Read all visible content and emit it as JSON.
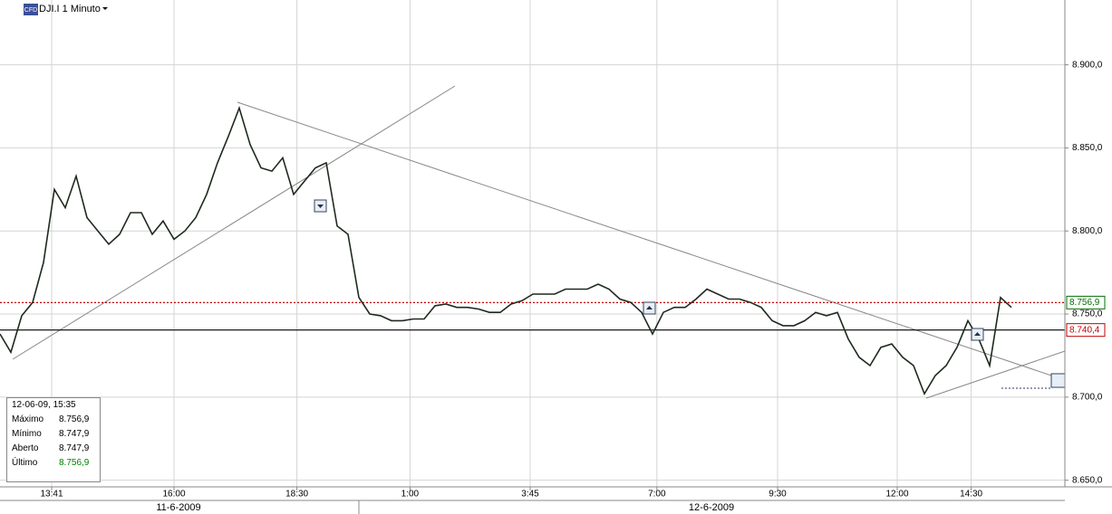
{
  "chart_data": {
    "type": "line",
    "title": "DJI.I 1 Minuto",
    "badge": "CFD",
    "x": [
      0,
      1,
      2,
      3,
      4,
      5,
      6,
      7,
      8,
      9,
      10,
      11,
      12,
      13,
      14,
      15,
      16,
      17,
      18,
      19,
      20,
      21,
      22,
      23,
      24,
      25,
      26,
      27,
      28,
      29,
      30,
      31,
      32,
      33,
      34,
      35,
      36,
      37,
      38,
      39,
      40,
      41,
      42,
      43,
      44,
      45,
      46,
      47,
      48,
      49,
      50,
      51,
      52,
      53,
      54,
      55,
      56,
      57,
      58,
      59,
      60,
      61,
      62,
      63,
      64,
      65,
      66,
      67,
      68,
      69,
      70,
      71,
      72,
      73,
      74,
      75,
      76,
      77,
      78,
      79,
      80,
      81,
      82,
      83,
      84,
      85,
      86,
      87,
      88,
      89,
      90,
      91,
      92,
      93
    ],
    "series": [
      {
        "name": "DJI.I",
        "color": "#1e2a1e",
        "values": [
          8738,
          8727,
          8749,
          8757,
          8781,
          8825,
          8814,
          8833,
          8808,
          8800,
          8792,
          8798,
          8811,
          8811,
          8798,
          8806,
          8795,
          8800,
          8808,
          8822,
          8841,
          8857,
          8874,
          8852,
          8838,
          8836,
          8844,
          8822,
          8830,
          8838,
          8841,
          8803,
          8798,
          8760,
          8750,
          8749,
          8746,
          8746,
          8747,
          8747,
          8755,
          8756,
          8754,
          8754,
          8753,
          8751,
          8751,
          8756,
          8758,
          8762,
          8762,
          8762,
          8765,
          8765,
          8765,
          8768,
          8765,
          8759,
          8757,
          8751,
          8738,
          8751,
          8754,
          8754,
          8759,
          8765,
          8762,
          8759,
          8759,
          8757,
          8754,
          8746,
          8743,
          8743,
          8746,
          8751,
          8749,
          8751,
          8735,
          8724,
          8719,
          8730,
          8732,
          8724,
          8719,
          8702,
          8713,
          8719,
          8730,
          8746,
          8735,
          8719,
          8760,
          8754
        ]
      }
    ],
    "xlim": [
      0,
      98
    ],
    "xticks": [
      {
        "value": 4.75,
        "label": "13:41"
      },
      {
        "value": 16,
        "label": "16:00"
      },
      {
        "value": 27.3,
        "label": "18:30"
      },
      {
        "value": 37.7,
        "label": "1:00"
      },
      {
        "value": 48.75,
        "label": "3:45"
      },
      {
        "value": 60.4,
        "label": "7:00"
      },
      {
        "value": 71.5,
        "label": "9:30"
      },
      {
        "value": 82.5,
        "label": "12:00"
      },
      {
        "value": 89.3,
        "label": "14:30"
      }
    ],
    "ylim": [
      8646,
      8939
    ],
    "yticks": [
      {
        "value": 8650,
        "label": "8.650,0"
      },
      {
        "value": 8700,
        "label": "8.700,0"
      },
      {
        "value": 8750,
        "label": "8.750,0"
      },
      {
        "value": 8800,
        "label": "8.800,0"
      },
      {
        "value": 8850,
        "label": "8.850,0"
      },
      {
        "value": 8900,
        "label": "8.900,0"
      }
    ],
    "grid": true,
    "reference_lines": [
      {
        "value": 8756.9,
        "label": "8.756,9",
        "color": "#c00000",
        "text_color": "#007000"
      },
      {
        "value": 8740.4,
        "label": "8.740,4",
        "color": "#000000",
        "text_color": "#c00000"
      }
    ],
    "date_labels": [
      "11-6-2009",
      "12-6-2009"
    ]
  },
  "info_box": {
    "title": "12-06-09, 15:35",
    "rows": [
      [
        "Máximo",
        "8.756,9"
      ],
      [
        "Mínimo",
        "8.747,9"
      ],
      [
        "Aberto",
        "8.747,9"
      ],
      [
        "Último",
        "8.756,9"
      ]
    ]
  }
}
